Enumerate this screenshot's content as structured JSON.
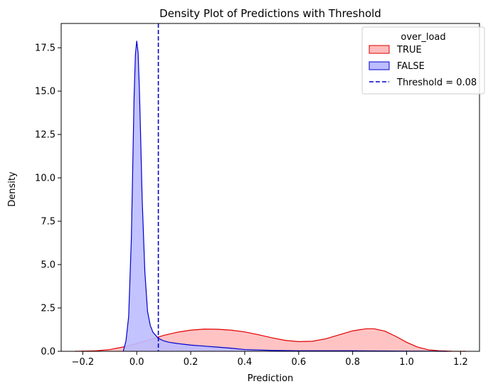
{
  "chart_data": {
    "type": "area",
    "title": "Density Plot of Predictions with Threshold",
    "xlabel": "Prediction",
    "ylabel": "Density",
    "xlim": [
      -0.28,
      1.27
    ],
    "ylim": [
      0,
      18.9
    ],
    "xticks": [
      -0.2,
      0.0,
      0.2,
      0.4,
      0.6,
      0.8,
      1.0,
      1.2
    ],
    "xtick_labels": [
      "−0.2",
      "0.0",
      "0.2",
      "0.4",
      "0.6",
      "0.8",
      "1.0",
      "1.2"
    ],
    "yticks": [
      0,
      2.5,
      5,
      7.5,
      10,
      12.5,
      15,
      17.5
    ],
    "ytick_labels": [
      "0.0",
      "2.5",
      "5.0",
      "7.5",
      "10.0",
      "12.5",
      "15.0",
      "17.5"
    ],
    "grid": false,
    "legend_title": "over_load",
    "legend_position": "top-right",
    "threshold": {
      "label": "Threshold = 0.08",
      "x": 0.08,
      "color": "#0000cc",
      "style": "dashed"
    },
    "series": [
      {
        "name": "TRUE",
        "color": "#e00000",
        "fill": "#ffbcbc",
        "x": [
          -0.23,
          -0.15,
          -0.1,
          -0.05,
          0.0,
          0.05,
          0.1,
          0.15,
          0.2,
          0.25,
          0.3,
          0.35,
          0.4,
          0.45,
          0.5,
          0.55,
          0.6,
          0.65,
          0.7,
          0.75,
          0.8,
          0.85,
          0.88,
          0.92,
          0.96,
          1.0,
          1.04,
          1.08,
          1.12,
          1.17,
          1.22
        ],
        "values": [
          0.0,
          0.03,
          0.1,
          0.25,
          0.45,
          0.68,
          0.92,
          1.1,
          1.22,
          1.28,
          1.27,
          1.22,
          1.12,
          0.96,
          0.78,
          0.63,
          0.56,
          0.58,
          0.72,
          0.95,
          1.18,
          1.3,
          1.3,
          1.16,
          0.86,
          0.52,
          0.25,
          0.09,
          0.03,
          0.005,
          0.0
        ]
      },
      {
        "name": "FALSE",
        "color": "#0000cc",
        "fill": "#bcbcff",
        "x": [
          -0.05,
          -0.04,
          -0.03,
          -0.02,
          -0.015,
          -0.01,
          -0.005,
          0.0,
          0.005,
          0.01,
          0.015,
          0.02,
          0.03,
          0.04,
          0.05,
          0.06,
          0.08,
          0.1,
          0.12,
          0.15,
          0.2,
          0.25,
          0.3,
          0.35,
          0.4,
          0.5,
          0.6,
          0.7,
          0.8,
          0.9,
          1.0,
          1.1,
          1.15
        ],
        "values": [
          0.0,
          0.6,
          2.0,
          6.5,
          10.5,
          14.6,
          17.1,
          17.9,
          17.2,
          15.0,
          12.0,
          8.8,
          4.6,
          2.3,
          1.5,
          1.1,
          0.75,
          0.6,
          0.52,
          0.45,
          0.36,
          0.3,
          0.24,
          0.18,
          0.1,
          0.05,
          0.03,
          0.03,
          0.03,
          0.02,
          0.01,
          0.005,
          0.0
        ]
      }
    ]
  }
}
